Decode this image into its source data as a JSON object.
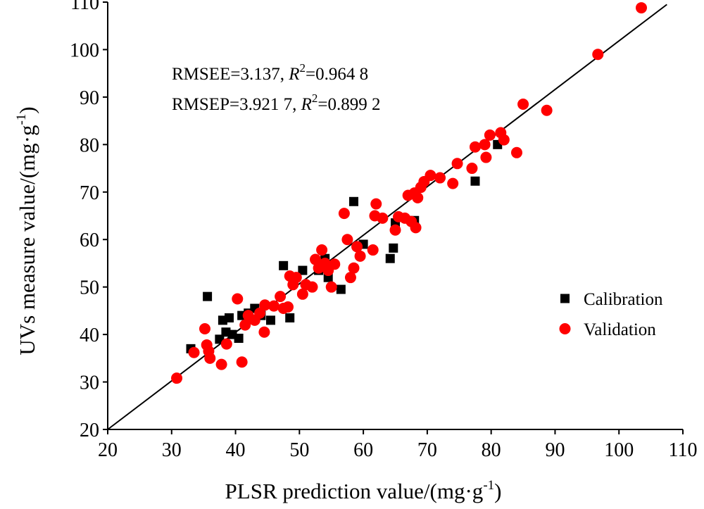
{
  "chart_data": {
    "type": "scatter",
    "xlabel": "PLSR prediction value/(mg·g",
    "xlabel_sup": "-1",
    "xlabel_close": ")",
    "ylabel": "UVs measure value/(mg·g",
    "ylabel_sup": "-1",
    "ylabel_close": ")",
    "xlim": [
      20,
      110
    ],
    "ylim": [
      20,
      110
    ],
    "x_ticks": [
      20,
      30,
      40,
      50,
      60,
      70,
      80,
      90,
      100,
      110
    ],
    "y_ticks": [
      20,
      30,
      40,
      50,
      60,
      70,
      80,
      90,
      100,
      110
    ],
    "grid": false,
    "legend_position": "right",
    "fit_line": {
      "x": [
        20,
        107.5
      ],
      "y": [
        20,
        109.5
      ]
    },
    "annotations": [
      {
        "parts": [
          "RMSEE=3.137, ",
          "R",
          "2",
          "=0.964 8"
        ]
      },
      {
        "parts": [
          "RMSEP=3.921 7, ",
          "R",
          "2",
          "=0.899 2"
        ]
      }
    ],
    "series": [
      {
        "name": "Calibration",
        "marker": "square",
        "color": "#000000",
        "points": [
          [
            33,
            37
          ],
          [
            35.6,
            48
          ],
          [
            37.5,
            39
          ],
          [
            38,
            43
          ],
          [
            38.5,
            40.5
          ],
          [
            39,
            43.5
          ],
          [
            39.5,
            40
          ],
          [
            40.5,
            39.2
          ],
          [
            41,
            44
          ],
          [
            42,
            44.5
          ],
          [
            43,
            45.5
          ],
          [
            44,
            44
          ],
          [
            45.5,
            43
          ],
          [
            47.5,
            54.5
          ],
          [
            48.5,
            43.5
          ],
          [
            50.5,
            53.5
          ],
          [
            53,
            53.5
          ],
          [
            54,
            56
          ],
          [
            54.5,
            52
          ],
          [
            56.5,
            49.5
          ],
          [
            58.5,
            68
          ],
          [
            60,
            59
          ],
          [
            64.2,
            56
          ],
          [
            64.7,
            58.2
          ],
          [
            65,
            63.5
          ],
          [
            68,
            64
          ],
          [
            77.5,
            72.3
          ],
          [
            81,
            80
          ]
        ]
      },
      {
        "name": "Validation",
        "marker": "circle",
        "color": "#ff0000",
        "points": [
          [
            30.8,
            30.8
          ],
          [
            33.5,
            36.2
          ],
          [
            35.2,
            41.2
          ],
          [
            35.5,
            37.8
          ],
          [
            35.8,
            36.5
          ],
          [
            36,
            35
          ],
          [
            37.8,
            33.7
          ],
          [
            38.6,
            38
          ],
          [
            40.3,
            47.5
          ],
          [
            41,
            34.2
          ],
          [
            41.5,
            42
          ],
          [
            42,
            44
          ],
          [
            43,
            43
          ],
          [
            43.8,
            44.5
          ],
          [
            44.5,
            40.5
          ],
          [
            44.6,
            46.2
          ],
          [
            46,
            46
          ],
          [
            47,
            48
          ],
          [
            47.5,
            45.5
          ],
          [
            48.2,
            45.8
          ],
          [
            48.5,
            52.3
          ],
          [
            49,
            50.5
          ],
          [
            49.5,
            52
          ],
          [
            50.5,
            48.5
          ],
          [
            51,
            50.5
          ],
          [
            52,
            50
          ],
          [
            52.5,
            55.8
          ],
          [
            53,
            54
          ],
          [
            53.5,
            57.8
          ],
          [
            54,
            55
          ],
          [
            54.5,
            53.5
          ],
          [
            55,
            50
          ],
          [
            55.5,
            54.8
          ],
          [
            57,
            65.5
          ],
          [
            57.5,
            60
          ],
          [
            58,
            52
          ],
          [
            58.5,
            54
          ],
          [
            59,
            58.5
          ],
          [
            59.5,
            56.5
          ],
          [
            61.5,
            57.8
          ],
          [
            61.8,
            65
          ],
          [
            62,
            67.5
          ],
          [
            63,
            64.5
          ],
          [
            65,
            62
          ],
          [
            65.5,
            64.8
          ],
          [
            66.5,
            64.5
          ],
          [
            67,
            69.3
          ],
          [
            67.5,
            63.8
          ],
          [
            68,
            69.8
          ],
          [
            68.2,
            62.5
          ],
          [
            68.5,
            68.8
          ],
          [
            69,
            71
          ],
          [
            69.5,
            72.2
          ],
          [
            70.5,
            73.5
          ],
          [
            72,
            73
          ],
          [
            74,
            71.8
          ],
          [
            74.7,
            76
          ],
          [
            77,
            75
          ],
          [
            77.5,
            79.5
          ],
          [
            79,
            80
          ],
          [
            79.2,
            77.3
          ],
          [
            79.8,
            82
          ],
          [
            81.5,
            82.5
          ],
          [
            82,
            81
          ],
          [
            84,
            78.3
          ],
          [
            85,
            88.5
          ],
          [
            88.7,
            87.2
          ],
          [
            96.7,
            99
          ],
          [
            103.5,
            108.8
          ]
        ]
      }
    ]
  }
}
